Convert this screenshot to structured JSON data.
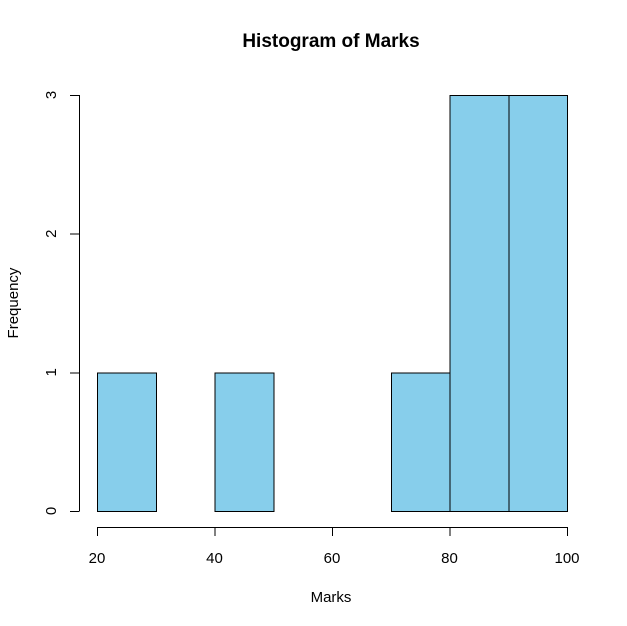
{
  "chart_data": {
    "type": "bar",
    "title": "Histogram of Marks",
    "xlabel": "Marks",
    "ylabel": "Frequency",
    "bin_edges": [
      20,
      30,
      40,
      50,
      60,
      70,
      80,
      90,
      100
    ],
    "values": [
      1,
      0,
      1,
      0,
      0,
      1,
      3,
      3
    ],
    "xlim": [
      20,
      100
    ],
    "ylim": [
      0,
      3
    ],
    "x_ticks": [
      20,
      40,
      60,
      80,
      100
    ],
    "y_ticks": [
      0,
      1,
      2,
      3
    ],
    "bar_color": "#87CEEB",
    "grid": false
  }
}
